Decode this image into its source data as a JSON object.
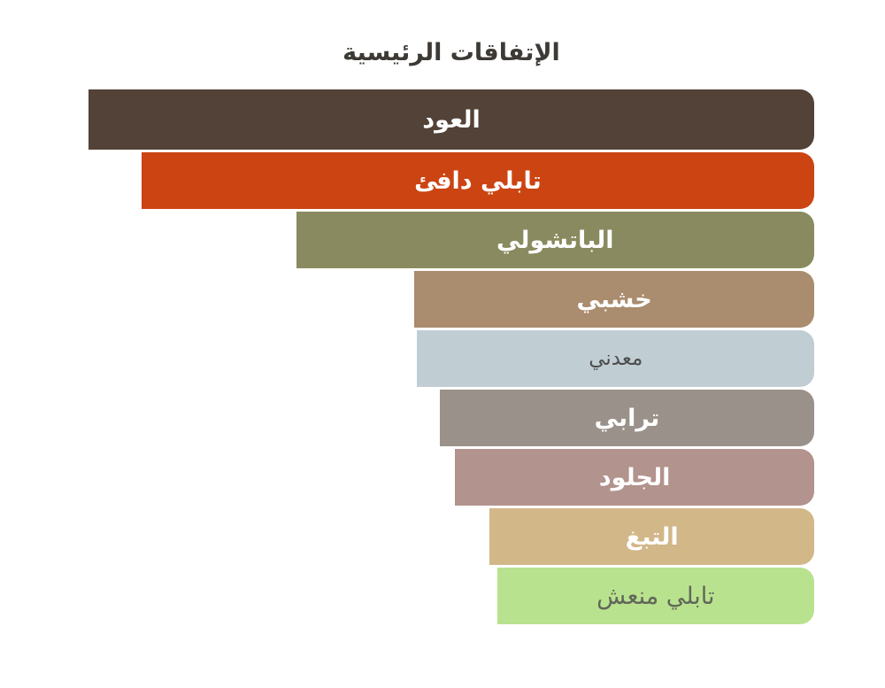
{
  "chart_data": {
    "type": "bar",
    "orientation": "horizontal",
    "direction": "rtl",
    "title": "الإتفاقات الرئيسية",
    "title_color": "#3d3a35",
    "value_unit": "percent-of-longest-bar",
    "bars": [
      {
        "label": "العود",
        "value": 100,
        "color": "#534237",
        "text_color": "#ffffff"
      },
      {
        "label": "تابلي دافئ",
        "value": 92.7,
        "color": "#cc4412",
        "text_color": "#ffffff"
      },
      {
        "label": "الباتشولي",
        "value": 71.4,
        "color": "#8a8a60",
        "text_color": "#ffffff"
      },
      {
        "label": "خشبي",
        "value": 55.1,
        "color": "#aa8c6e",
        "text_color": "#ffffff"
      },
      {
        "label": "معدني",
        "value": 54.7,
        "color": "#c0ced4",
        "text_color": "#4c4c4c"
      },
      {
        "label": "ترابي",
        "value": 51.6,
        "color": "#9a928a",
        "text_color": "#ffffff"
      },
      {
        "label": "الجلود",
        "value": 49.5,
        "color": "#b2938d",
        "text_color": "#ffffff"
      },
      {
        "label": "التبغ",
        "value": 44.7,
        "color": "#d2b789",
        "text_color": "#ffffff"
      },
      {
        "label": "تابلي منعش",
        "value": 43.7,
        "color": "#b9e28e",
        "text_color": "#61675a"
      }
    ]
  }
}
